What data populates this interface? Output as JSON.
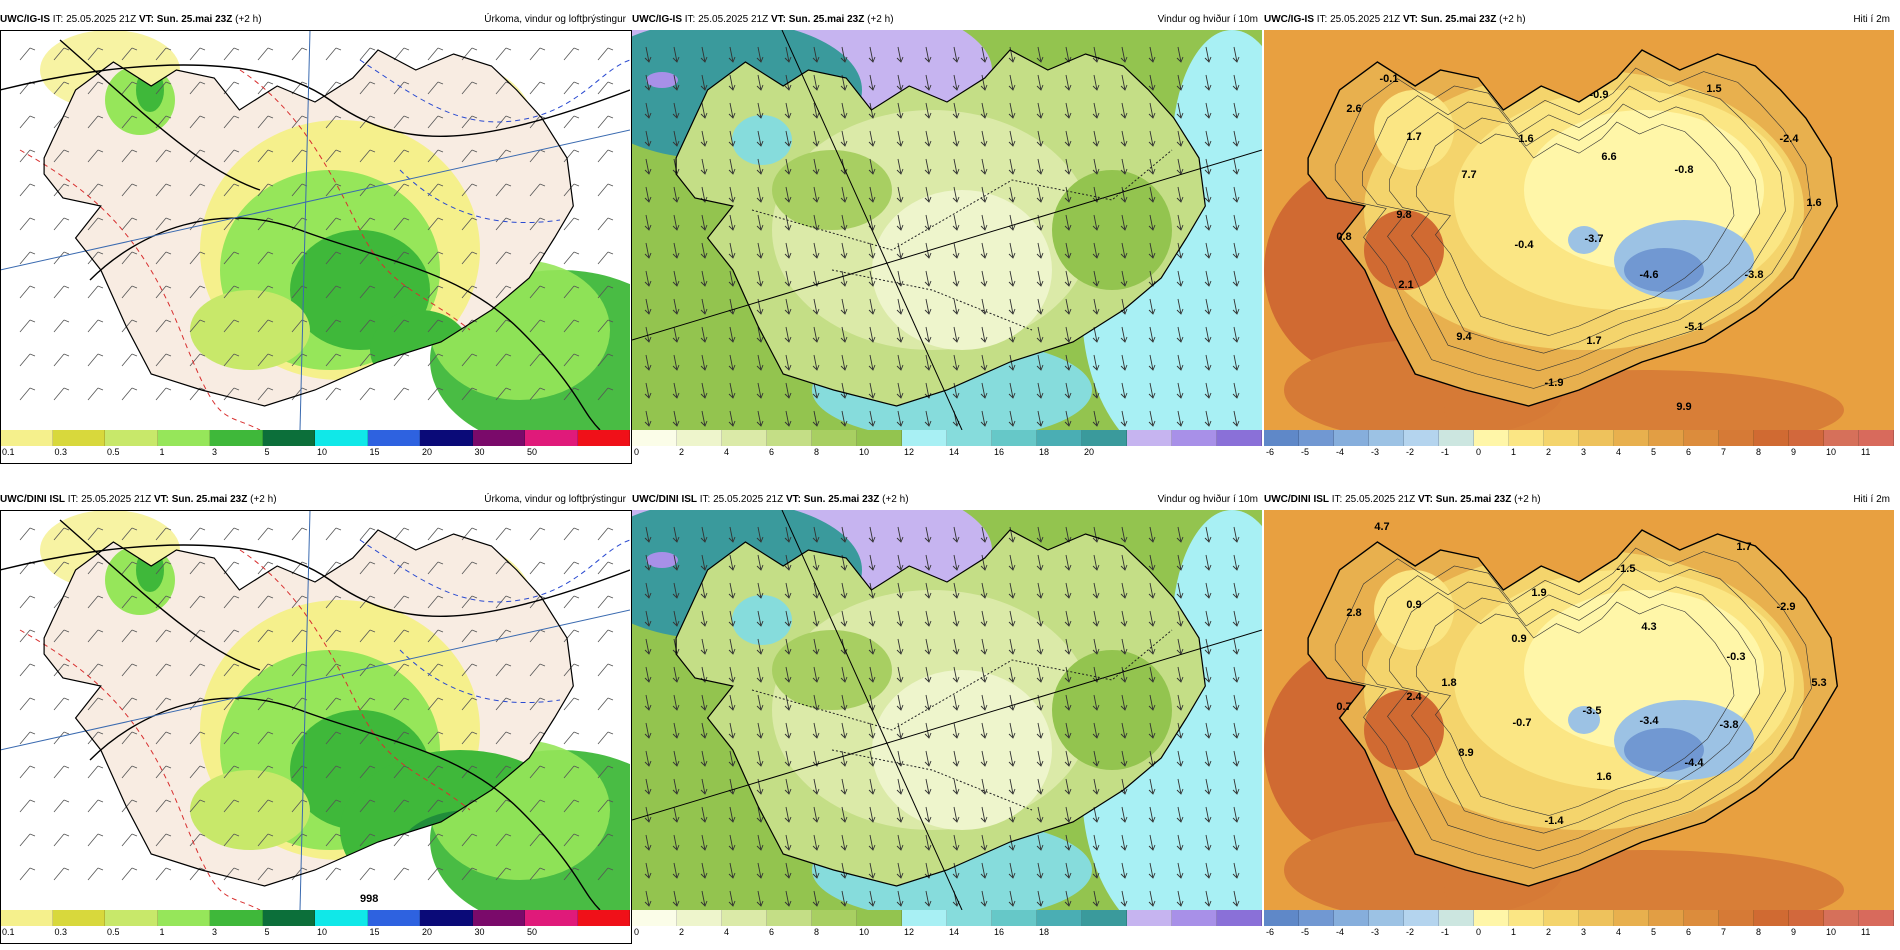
{
  "panels": [
    {
      "id": "p11",
      "source": "UWC/IG-IS",
      "it": "IT: 25.05.2025 21Z",
      "vt_label": "VT:",
      "vt": "Sun. 25.mai 23Z",
      "lead": "(+2 h)",
      "title": "Úrkoma, vindur og loftþrýstingur",
      "kind": "precip",
      "ticks": [
        "0.1",
        "0.3",
        "0.5",
        "1",
        "3",
        "5",
        "10",
        "15",
        "20",
        "30",
        "50"
      ],
      "temps": []
    },
    {
      "id": "p12",
      "source": "UWC/IG-IS",
      "it": "IT: 25.05.2025 21Z",
      "vt_label": "VT:",
      "vt": "Sun. 25.mai 23Z",
      "lead": "(+2 h)",
      "title": "Vindur og hviður í 10m",
      "kind": "wind",
      "ticks": [
        "0",
        "2",
        "4",
        "6",
        "8",
        "10",
        "12",
        "14",
        "16",
        "18",
        "20"
      ],
      "temps": []
    },
    {
      "id": "p13",
      "source": "UWC/IG-IS",
      "it": "IT: 25.05.2025 21Z",
      "vt_label": "VT:",
      "vt": "Sun. 25.mai 23Z",
      "lead": "(+2 h)",
      "title": "Hiti í 2m",
      "kind": "temp",
      "ticks": [
        "-6",
        "-5",
        "-4",
        "-3",
        "-2",
        "-1",
        "0",
        "1",
        "2",
        "3",
        "4",
        "5",
        "6",
        "7",
        "8",
        "9",
        "10",
        "11"
      ],
      "temps": [
        "-0.1",
        "1.5",
        "-0.9",
        "2.6",
        "1.7",
        "1.6",
        "6.6",
        "7.7",
        "-2.4",
        "-0.8",
        "1.6",
        "9.8",
        "0.8",
        "-0.4",
        "-3.7",
        "-4.6",
        "-3.8",
        "2.1",
        "9.4",
        "1.7",
        "-5.1",
        "-1.9",
        "9.9"
      ]
    },
    {
      "id": "p21",
      "source": "UWC/DINI ISL",
      "it": "IT: 25.05.2025 21Z",
      "vt_label": "VT:",
      "vt": "Sun. 25.mai 23Z",
      "lead": "(+2 h)",
      "title": "Úrkoma, vindur og loftþrýstingur",
      "kind": "precip",
      "ticks": [
        "0.1",
        "0.3",
        "0.5",
        "1",
        "3",
        "5",
        "10",
        "15",
        "20",
        "30",
        "50"
      ],
      "temps": [],
      "pressure_label": "998"
    },
    {
      "id": "p22",
      "source": "UWC/DINI ISL",
      "it": "IT: 25.05.2025 21Z",
      "vt_label": "VT:",
      "vt": "Sun. 25.mai 23Z",
      "lead": "(+2 h)",
      "title": "Vindur og hviður í 10m",
      "kind": "wind",
      "ticks": [
        "0",
        "2",
        "4",
        "6",
        "8",
        "10",
        "12",
        "14",
        "16",
        "18"
      ],
      "temps": []
    },
    {
      "id": "p23",
      "source": "UWC/DINI ISL",
      "it": "IT: 25.05.2025 21Z",
      "vt_label": "VT:",
      "vt": "Sun. 25.mai 23Z",
      "lead": "(+2 h)",
      "title": "Hiti í 2m",
      "kind": "temp",
      "ticks": [
        "-6",
        "-5",
        "-4",
        "-3",
        "-2",
        "-1",
        "0",
        "1",
        "2",
        "3",
        "4",
        "5",
        "6",
        "7",
        "8",
        "9",
        "10",
        "11"
      ],
      "temps": [
        "4.7",
        "1.7",
        "-1.5",
        "2.8",
        "0.9",
        "1.9",
        "0.9",
        "4.3",
        "-2.9",
        "-0.3",
        "5.3",
        "1.8",
        "0.7",
        "2.4",
        "-0.7",
        "-3.5",
        "-3.4",
        "-3.8",
        "8.9",
        "-4.4",
        "1.6",
        "-1.4"
      ]
    }
  ],
  "colors": {
    "precip": [
      "#f5f08c",
      "#d8d83c",
      "#c8e86a",
      "#96e65a",
      "#3fb83a",
      "#0c6f3a",
      "#10e8e8",
      "#2e62e0",
      "#0a0a78",
      "#7a0a6a",
      "#e01a7a",
      "#f01018"
    ],
    "wind": [
      "#fbfde8",
      "#eef5cc",
      "#dbeaa8",
      "#c4de86",
      "#a8cf62",
      "#93c44f",
      "#a8f0f4",
      "#86dcdc",
      "#66c8c8",
      "#4aaeb4",
      "#3a9a9c",
      "#c6b4f0",
      "#a890e8",
      "#8a70d8"
    ],
    "temp": [
      "#5f88c8",
      "#7198d2",
      "#86aedc",
      "#9cc2e4",
      "#b4d4ee",
      "#cce6e0",
      "#fff6a8",
      "#fbe684",
      "#f4d46c",
      "#eec25c",
      "#e8b04e",
      "#e29e44",
      "#dc8c3c",
      "#d67a36",
      "#d06a32",
      "#d2683c",
      "#d6705a",
      "#d86a5c"
    ],
    "land_precip": "#f8ece2",
    "sea_precip": "#ffffff"
  }
}
